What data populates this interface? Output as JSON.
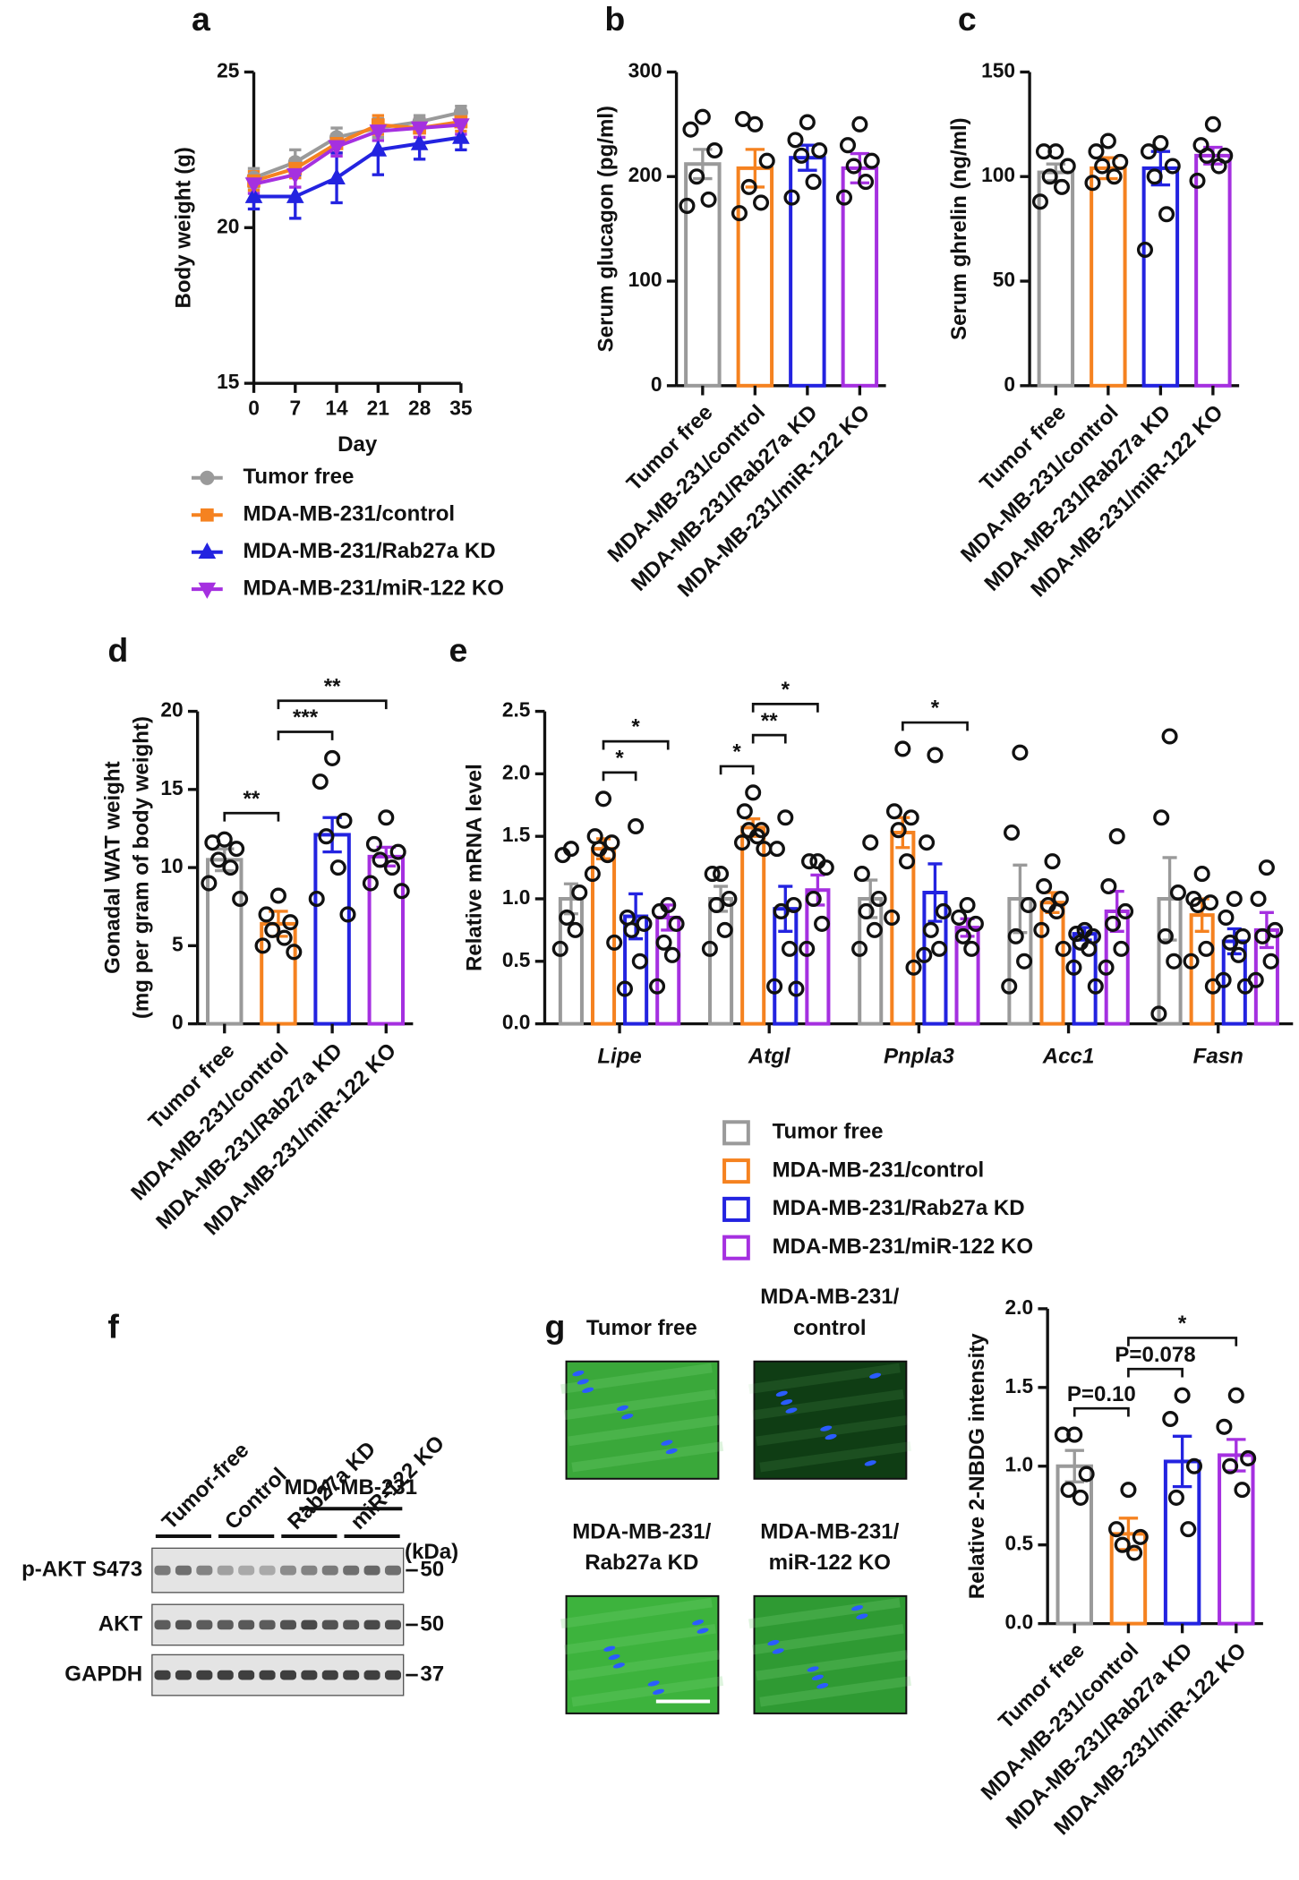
{
  "chart_data": [
    {
      "panel": "a",
      "type": "line",
      "x": [
        0,
        7,
        14,
        21,
        28,
        35
      ],
      "xlim": [
        0,
        35
      ],
      "xticks": [
        0,
        7,
        14,
        21,
        28,
        35
      ],
      "xlabel": "Day",
      "ylabel": "Body weight (g)",
      "ylim": [
        15,
        25
      ],
      "yticks": [
        15,
        20,
        25
      ],
      "legend": "below",
      "series": [
        {
          "name": "Tumor free",
          "color": "#9a9a9a",
          "marker": "circle",
          "values": [
            21.6,
            22.1,
            22.9,
            23.2,
            23.4,
            23.7
          ],
          "errors": [
            0.3,
            0.4,
            0.3,
            0.3,
            0.2,
            0.2
          ]
        },
        {
          "name": "MDA-MB-231/control",
          "color": "#f58220",
          "marker": "square",
          "values": [
            21.5,
            21.9,
            22.7,
            23.3,
            23.2,
            23.4
          ],
          "errors": [
            0.3,
            0.3,
            0.3,
            0.3,
            0.3,
            0.3
          ]
        },
        {
          "name": "MDA-MB-231/Rab27a KD",
          "color": "#2323e0",
          "marker": "triangle-up",
          "values": [
            21.0,
            21.0,
            21.6,
            22.5,
            22.7,
            22.9
          ],
          "errors": [
            0.4,
            0.7,
            0.8,
            0.8,
            0.5,
            0.4
          ]
        },
        {
          "name": "MDA-MB-231/miR-122 KO",
          "color": "#a530e0",
          "marker": "triangle-down",
          "values": [
            21.4,
            21.7,
            22.6,
            23.1,
            23.2,
            23.3
          ],
          "errors": [
            0.3,
            0.4,
            0.3,
            0.3,
            0.3,
            0.3
          ]
        }
      ]
    },
    {
      "panel": "b",
      "type": "bar",
      "categories": [
        "Tumor free",
        "MDA-MB-231/control",
        "MDA-MB-231/Rab27a KD",
        "MDA-MB-231/miR-122 KO"
      ],
      "colors": [
        "#9a9a9a",
        "#f58220",
        "#2323e0",
        "#a530e0"
      ],
      "values": [
        212,
        208,
        218,
        208
      ],
      "errors": [
        14,
        18,
        12,
        14
      ],
      "points": [
        [
          257,
          245,
          225,
          200,
          178,
          172
        ],
        [
          250,
          255,
          215,
          190,
          175,
          165
        ],
        [
          252,
          235,
          225,
          220,
          195,
          180
        ],
        [
          250,
          230,
          215,
          210,
          195,
          180
        ]
      ],
      "ylabel": "Serum glucagon (pg/ml)",
      "ylim": [
        0,
        300
      ],
      "yticks": [
        0,
        100,
        200,
        300
      ]
    },
    {
      "panel": "c",
      "type": "bar",
      "categories": [
        "Tumor free",
        "MDA-MB-231/control",
        "MDA-MB-231/Rab27a KD",
        "MDA-MB-231/miR-122 KO"
      ],
      "colors": [
        "#9a9a9a",
        "#f58220",
        "#2323e0",
        "#a530e0"
      ],
      "values": [
        102,
        104,
        104,
        110
      ],
      "errors": [
        4,
        5,
        8,
        4
      ],
      "points": [
        [
          112,
          112,
          105,
          100,
          95,
          88
        ],
        [
          117,
          112,
          107,
          105,
          100,
          97
        ],
        [
          116,
          112,
          105,
          100,
          82,
          65
        ],
        [
          125,
          115,
          110,
          110,
          105,
          98
        ]
      ],
      "ylabel": "Serum ghrelin (ng/ml)",
      "ylim": [
        0,
        150
      ],
      "yticks": [
        0,
        50,
        100,
        150
      ]
    },
    {
      "panel": "d",
      "type": "bar",
      "categories": [
        "Tumor free",
        "MDA-MB-231/control",
        "MDA-MB-231/Rab27a KD",
        "MDA-MB-231/miR-122 KO"
      ],
      "colors": [
        "#9a9a9a",
        "#f58220",
        "#2323e0",
        "#a530e0"
      ],
      "values": [
        10.5,
        6.4,
        12.1,
        10.7
      ],
      "errors": [
        0.7,
        0.8,
        1.1,
        0.6
      ],
      "points": [
        [
          11.8,
          11.6,
          11.2,
          10.5,
          10.0,
          9.0,
          8.0
        ],
        [
          8.2,
          7.0,
          6.5,
          6.0,
          5.5,
          5.0,
          4.6
        ],
        [
          17.0,
          15.5,
          13.0,
          12.0,
          10.0,
          8.0,
          7.0
        ],
        [
          13.2,
          11.5,
          11.0,
          10.5,
          10.0,
          9.0,
          8.5
        ]
      ],
      "ylabel": [
        "Gonadal WAT weight",
        "(mg per gram of body weight)"
      ],
      "ylim": [
        0,
        20
      ],
      "yticks": [
        0,
        5,
        10,
        15,
        20
      ],
      "annotations": [
        {
          "label": "**",
          "span": [
            0,
            1
          ]
        },
        {
          "label": "***",
          "span": [
            1,
            2
          ]
        },
        {
          "label": "**",
          "span": [
            1,
            3
          ]
        }
      ]
    },
    {
      "panel": "e",
      "type": "grouped-bar",
      "categories": [
        "Lipe",
        "Atgl",
        "Pnpla3",
        "Acc1",
        "Fasn"
      ],
      "ylabel": "Relative mRNA level",
      "ylim": [
        0,
        2.5
      ],
      "yticks": [
        {
          "value": 0,
          "label": "0.0"
        },
        0.5,
        {
          "value": 1,
          "label": "1.0"
        },
        1.5,
        {
          "value": 2,
          "label": "2.0"
        },
        2.5
      ],
      "legend": "below",
      "series": [
        {
          "name": "Tumor free",
          "color": "#9a9a9a",
          "values": [
            1.0,
            1.0,
            1.0,
            1.0,
            1.0
          ],
          "errors": [
            0.12,
            0.1,
            0.15,
            0.27,
            0.33
          ],
          "points": [
            [
              1.4,
              1.35,
              1.05,
              0.85,
              0.75,
              0.6
            ],
            [
              1.2,
              1.2,
              1.0,
              0.95,
              0.75,
              0.6
            ],
            [
              1.45,
              1.2,
              1.0,
              0.9,
              0.75,
              0.6
            ],
            [
              2.17,
              1.53,
              0.95,
              0.7,
              0.5,
              0.3
            ],
            [
              2.3,
              1.65,
              1.05,
              0.7,
              0.5,
              0.08
            ]
          ]
        },
        {
          "name": "MDA-MB-231/control",
          "color": "#f58220",
          "values": [
            1.4,
            1.57,
            1.53,
            0.97,
            0.87
          ],
          "errors": [
            0.08,
            0.07,
            0.12,
            0.08,
            0.13
          ],
          "points": [
            [
              1.8,
              1.5,
              1.45,
              1.4,
              1.35,
              1.2,
              0.65
            ],
            [
              1.85,
              1.7,
              1.55,
              1.55,
              1.5,
              1.45,
              1.4
            ],
            [
              2.2,
              1.7,
              1.65,
              1.55,
              1.3,
              0.85,
              0.45
            ],
            [
              1.3,
              1.1,
              1.0,
              0.95,
              0.9,
              0.75,
              0.6
            ],
            [
              1.2,
              1.0,
              0.97,
              0.95,
              0.6,
              0.5,
              0.3
            ]
          ]
        },
        {
          "name": "MDA-MB-231/Rab27a KD",
          "color": "#2323e0",
          "values": [
            0.86,
            0.92,
            1.05,
            0.72,
            0.66
          ],
          "errors": [
            0.18,
            0.18,
            0.23,
            0.05,
            0.1
          ],
          "points": [
            [
              1.58,
              0.85,
              0.8,
              0.75,
              0.5,
              0.28
            ],
            [
              1.65,
              1.4,
              0.95,
              0.9,
              0.6,
              0.3,
              0.28
            ],
            [
              2.15,
              1.45,
              0.9,
              0.75,
              0.6,
              0.55
            ],
            [
              0.75,
              0.72,
              0.7,
              0.65,
              0.6,
              0.45,
              0.3
            ],
            [
              1.0,
              0.85,
              0.7,
              0.65,
              0.55,
              0.35,
              0.3
            ]
          ]
        },
        {
          "name": "MDA-MB-231/miR-122 KO",
          "color": "#a530e0",
          "values": [
            0.85,
            1.07,
            0.77,
            0.9,
            0.75
          ],
          "errors": [
            0.1,
            0.12,
            0.07,
            0.16,
            0.14
          ],
          "points": [
            [
              0.95,
              0.9,
              0.8,
              0.65,
              0.55,
              0.3
            ],
            [
              1.3,
              1.3,
              1.25,
              1.0,
              0.8,
              0.6
            ],
            [
              0.95,
              0.85,
              0.8,
              0.7,
              0.6
            ],
            [
              1.5,
              1.1,
              0.9,
              0.8,
              0.6,
              0.45
            ],
            [
              1.25,
              1.0,
              0.75,
              0.7,
              0.5,
              0.35
            ]
          ]
        }
      ],
      "annotations": [
        {
          "label": "*",
          "group": 0,
          "span": [
            1,
            2
          ]
        },
        {
          "label": "*",
          "group": 0,
          "span": [
            1,
            3
          ]
        },
        {
          "label": "*",
          "group": 1,
          "span": [
            0,
            1
          ]
        },
        {
          "label": "**",
          "group": 1,
          "span": [
            1,
            2
          ]
        },
        {
          "label": "*",
          "group": 1,
          "span": [
            1,
            3
          ]
        },
        {
          "label": "*",
          "group": 2,
          "span": [
            1,
            3
          ]
        }
      ]
    },
    {
      "type": "bar",
      "categories": [
        "Tumor free",
        "MDA-MB-231/control",
        "MDA-MB-231/Rab27a KD",
        "MDA-MB-231/miR-122 KO"
      ],
      "colors": [
        "#9a9a9a",
        "#f58220",
        "#2323e0",
        "#a530e0"
      ],
      "values": [
        1.0,
        0.57,
        1.03,
        1.07
      ],
      "errors": [
        0.1,
        0.1,
        0.16,
        0.1
      ],
      "points": [
        [
          1.2,
          1.2,
          0.95,
          0.85,
          0.8
        ],
        [
          0.85,
          0.6,
          0.55,
          0.5,
          0.45
        ],
        [
          1.45,
          1.3,
          1.0,
          0.8,
          0.6
        ],
        [
          1.45,
          1.25,
          1.05,
          1.0,
          0.85
        ]
      ],
      "ylabel": "Relative 2-NBDG intensity",
      "ylim": [
        0,
        2
      ],
      "yticks": [
        {
          "value": 0,
          "label": "0.0"
        },
        0.5,
        {
          "value": 1,
          "label": "1.0"
        },
        1.5,
        {
          "value": 2,
          "label": "2.0"
        }
      ],
      "annotations": [
        {
          "label": "P=0.10",
          "span": [
            0,
            1
          ]
        },
        {
          "label": "P=0.078",
          "span": [
            1,
            2
          ]
        },
        {
          "label": "*",
          "span": [
            1,
            3
          ]
        }
      ]
    }
  ],
  "blot": {
    "panel": "f",
    "header": "MDA-MB-231",
    "lanes": [
      "Tumor-free",
      "Control",
      "Rab27a KD",
      "miR-122 KO"
    ],
    "unit": "(kDa)",
    "rows": [
      {
        "label": "p-AKT S473",
        "size": 50
      },
      {
        "label": "AKT",
        "size": 50
      },
      {
        "label": "GAPDH",
        "size": 37
      }
    ]
  },
  "micrographs": {
    "panel": "g",
    "labels": [
      [
        "Tumor free"
      ],
      [
        "MDA-MB-231/",
        "control"
      ],
      [
        "MDA-MB-231/",
        "Rab27a KD"
      ],
      [
        "MDA-MB-231/",
        "miR-122 KO"
      ]
    ]
  }
}
